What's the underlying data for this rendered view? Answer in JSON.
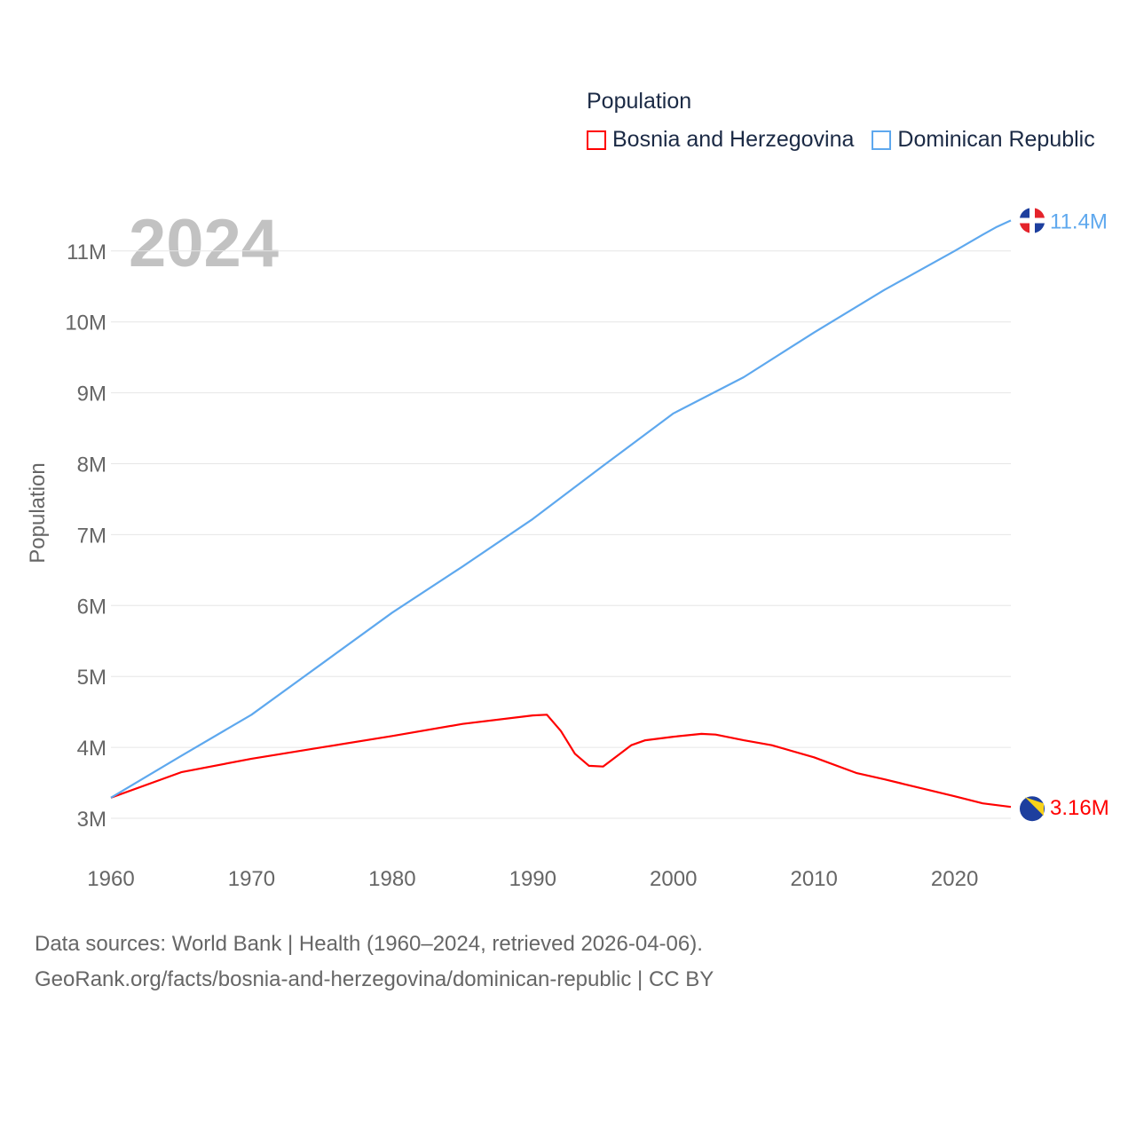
{
  "chart_data": {
    "type": "line",
    "title": "Population",
    "year_label": "2024",
    "ylabel": "Population",
    "xlabel": "",
    "xlim": [
      1960,
      2024
    ],
    "ylim": [
      3000000,
      11400000
    ],
    "x_ticks": [
      1960,
      1970,
      1980,
      1990,
      2000,
      2010,
      2020
    ],
    "y_ticks": [
      3000000,
      4000000,
      5000000,
      6000000,
      7000000,
      8000000,
      9000000,
      10000000,
      11000000
    ],
    "y_tick_labels": [
      "3M",
      "4M",
      "5M",
      "6M",
      "7M",
      "8M",
      "9M",
      "10M",
      "11M"
    ],
    "grid": true,
    "legend_position": "top-right",
    "series": [
      {
        "name": "Bosnia and Herzegovina",
        "color": "#ff0000",
        "end_label": "3.16M",
        "x": [
          1960,
          1965,
          1970,
          1975,
          1980,
          1985,
          1990,
          1991,
          1992,
          1993,
          1994,
          1995,
          1996,
          1997,
          1998,
          2000,
          2002,
          2003,
          2005,
          2007,
          2010,
          2013,
          2015,
          2020,
          2022,
          2024
        ],
        "values": [
          3290000,
          3650000,
          3840000,
          4000000,
          4160000,
          4330000,
          4450000,
          4460000,
          4230000,
          3910000,
          3740000,
          3730000,
          3880000,
          4030000,
          4100000,
          4150000,
          4190000,
          4180000,
          4100000,
          4030000,
          3860000,
          3640000,
          3550000,
          3310000,
          3210000,
          3160000
        ]
      },
      {
        "name": "Dominican Republic",
        "color": "#5ea8ee",
        "end_label": "11.4M",
        "x": [
          1960,
          1965,
          1970,
          1975,
          1980,
          1985,
          1990,
          1995,
          2000,
          2005,
          2010,
          2015,
          2020,
          2022,
          2023,
          2024
        ],
        "values": [
          3290000,
          3880000,
          4460000,
          5180000,
          5900000,
          6550000,
          7220000,
          7970000,
          8710000,
          9220000,
          9850000,
          10450000,
          11000000,
          11230000,
          11340000,
          11430000
        ]
      }
    ]
  },
  "footer": {
    "line1": "Data sources: World Bank | Health (1960–2024, retrieved 2026-04-06).",
    "line2": "GeoRank.org/facts/bosnia-and-herzegovina/dominican-republic | CC BY"
  }
}
